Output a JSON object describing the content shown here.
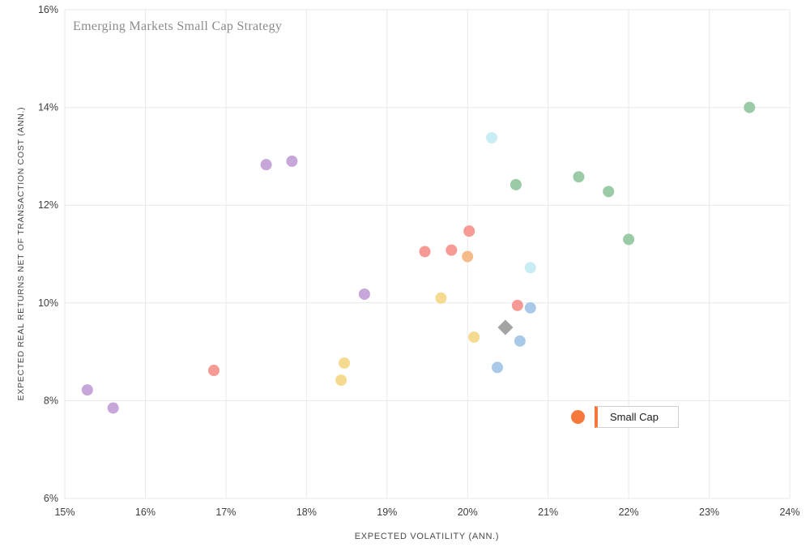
{
  "chart": {
    "title": "Emerging Markets Small Cap Strategy",
    "x_axis_title": "EXPECTED VOLATILITY (ANN.)",
    "y_axis_title": "EXPECTED REAL RETURNS NET OF TRANSACTION COST (ANN.)",
    "legend": {
      "label": "Small Cap",
      "color": "#f4793b"
    },
    "grid_color": "#e9e9e9",
    "tick_label_color": "#3d3d3d"
  },
  "chart_data": {
    "type": "scatter",
    "title": "Emerging Markets Small Cap Strategy",
    "xlabel": "EXPECTED VOLATILITY (ANN.)",
    "ylabel": "EXPECTED REAL RETURNS NET OF TRANSACTION COST (ANN.)",
    "xlim": [
      15,
      24
    ],
    "ylim": [
      6,
      16
    ],
    "x_ticks": [
      15,
      16,
      17,
      18,
      19,
      20,
      21,
      22,
      23,
      24
    ],
    "y_ticks": [
      6,
      8,
      10,
      12,
      14,
      16
    ],
    "tick_suffix": "%",
    "grid": true,
    "legend_position": "inside-right",
    "series": [
      {
        "name": "purple",
        "color": "#c7a6da",
        "marker": "circle",
        "points": [
          [
            15.28,
            8.22
          ],
          [
            15.6,
            7.85
          ],
          [
            17.5,
            12.83
          ],
          [
            17.82,
            12.9
          ],
          [
            18.72,
            10.18
          ]
        ]
      },
      {
        "name": "salmon",
        "color": "#f59a94",
        "marker": "circle",
        "points": [
          [
            16.85,
            8.62
          ],
          [
            19.47,
            11.05
          ],
          [
            19.8,
            11.08
          ],
          [
            20.02,
            11.47
          ],
          [
            20.62,
            9.95
          ]
        ]
      },
      {
        "name": "yellow",
        "color": "#f5db8f",
        "marker": "circle",
        "points": [
          [
            18.43,
            8.42
          ],
          [
            18.47,
            8.77
          ],
          [
            19.67,
            10.1
          ],
          [
            20.08,
            9.3
          ]
        ]
      },
      {
        "name": "orange",
        "color": "#f6bb8a",
        "marker": "circle",
        "points": [
          [
            20.0,
            10.95
          ]
        ]
      },
      {
        "name": "cyan",
        "color": "#c9edf4",
        "marker": "circle",
        "points": [
          [
            20.3,
            13.38
          ],
          [
            20.78,
            10.72
          ]
        ]
      },
      {
        "name": "blue",
        "color": "#a9c9e8",
        "marker": "circle",
        "points": [
          [
            20.37,
            8.68
          ],
          [
            20.65,
            9.22
          ],
          [
            20.78,
            9.9
          ]
        ]
      },
      {
        "name": "green",
        "color": "#9acaa6",
        "marker": "circle",
        "points": [
          [
            20.6,
            12.42
          ],
          [
            21.38,
            12.58
          ],
          [
            21.75,
            12.28
          ],
          [
            22.0,
            11.3
          ],
          [
            23.5,
            14.0
          ]
        ]
      },
      {
        "name": "strategy-diamond",
        "color": "#a3a3a3",
        "marker": "diamond",
        "points": [
          [
            20.47,
            9.5
          ]
        ]
      }
    ]
  }
}
